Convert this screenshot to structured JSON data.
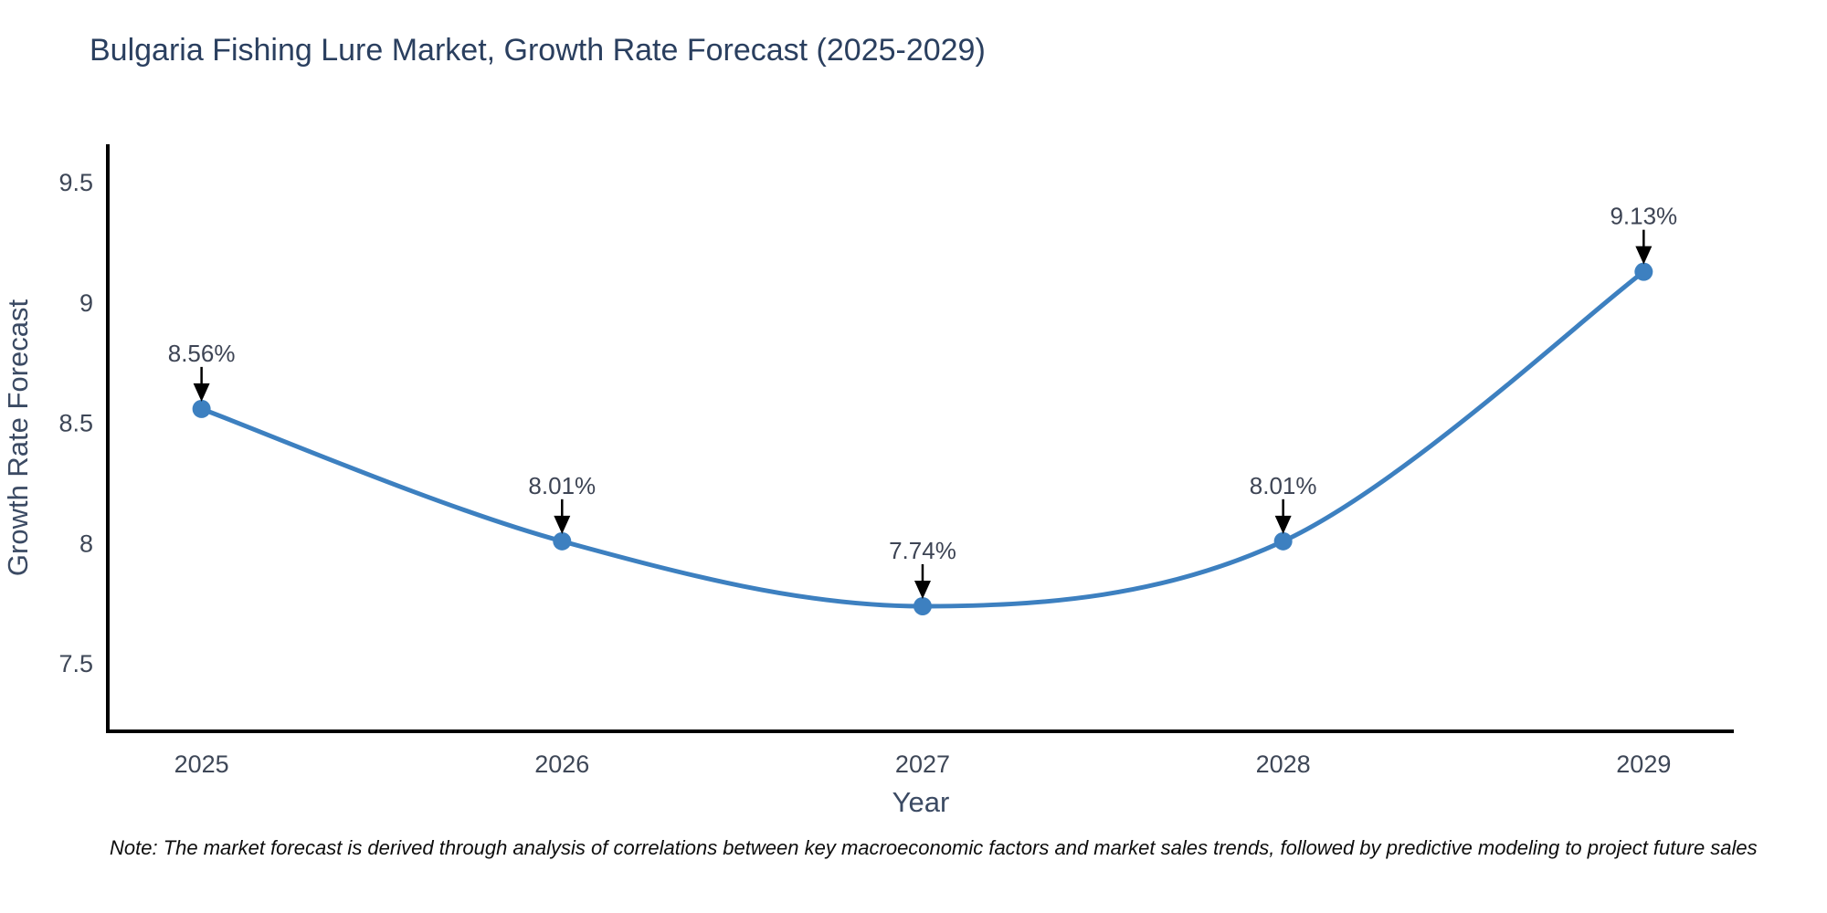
{
  "chart_data": {
    "type": "line",
    "title": "Bulgaria Fishing Lure Market, Growth Rate Forecast (2025-2029)",
    "xlabel": "Year",
    "ylabel": "Growth Rate Forecast",
    "x": [
      2025,
      2026,
      2027,
      2028,
      2029
    ],
    "values": [
      8.56,
      8.01,
      7.74,
      8.01,
      9.13
    ],
    "point_labels": [
      "8.56%",
      "8.01%",
      "7.74%",
      "8.01%",
      "9.13%"
    ],
    "xticks": [
      2025,
      2026,
      2027,
      2028,
      2029
    ],
    "xtick_labels": [
      "2025",
      "2026",
      "2027",
      "2028",
      "2029"
    ],
    "yticks": [
      7.5,
      8,
      8.5,
      9,
      9.5
    ],
    "ytick_labels": [
      "7.5",
      "8",
      "8.5",
      "9",
      "9.5"
    ],
    "xlim": [
      2024.74,
      2029.25
    ],
    "ylim": [
      7.22,
      9.66
    ],
    "line_shape": "spline",
    "grid": false,
    "legend": "none",
    "line_color": "#3d80c0",
    "marker_color": "#3d80c0",
    "axis_color": "#000000",
    "title_color": "#2a3f5f",
    "axis_label_color": "#3b4a63",
    "tick_color": "#3e4757",
    "annotation_color": "#3d4454",
    "arrow_color": "#000000"
  },
  "note": {
    "text": "Note: The market forecast is derived through analysis of correlations between key macroeconomic factors and market sales trends, followed by predictive modeling to project future sales"
  }
}
